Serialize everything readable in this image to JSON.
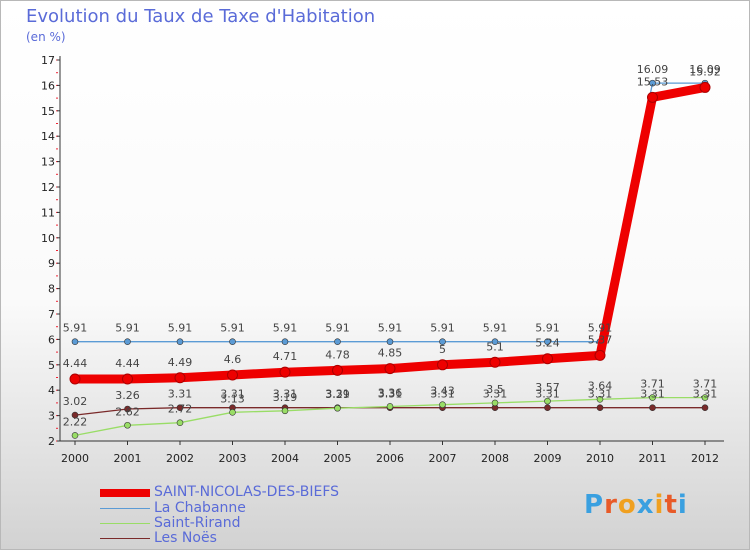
{
  "header": {
    "title": "Evolution du Taux de Taxe d'Habitation",
    "unit": "(en %)"
  },
  "logo": {
    "text": "Proxiti",
    "letter_colors": [
      "#3aa0e0",
      "#e85a28",
      "#f0a020",
      "#3aa0e0",
      "#f0a020",
      "#e85a28",
      "#3aa0e0"
    ]
  },
  "chart_data": {
    "type": "line",
    "title": "Evolution du Taux de Taxe d'Habitation",
    "ylabel": "(en %)",
    "xlabel": "",
    "x": [
      "2000",
      "2001",
      "2002",
      "2003",
      "2004",
      "2005",
      "2006",
      "2007",
      "2008",
      "2009",
      "2010",
      "2011",
      "2012"
    ],
    "ylim": [
      2,
      17
    ],
    "yticks": [
      "2",
      "3",
      "4",
      "5",
      "6",
      "7",
      "8",
      "9",
      "10",
      "11",
      "12",
      "13",
      "14",
      "15",
      "16",
      "17"
    ],
    "grid": false,
    "legend_position": "bottom-left",
    "series": [
      {
        "name": "SAINT-NICOLAS-DES-BIEFS",
        "color": "#ee0000",
        "values": [
          4.44,
          4.44,
          4.49,
          4.6,
          4.71,
          4.78,
          4.85,
          5,
          5.1,
          5.24,
          5.37,
          15.53,
          15.92
        ],
        "labels": [
          "4.44",
          "4.44",
          "4.49",
          "4.6",
          "4.71",
          "4.78",
          "4.85",
          "5",
          "5.1",
          "5.24",
          "5.37",
          "15.53",
          "15.92"
        ]
      },
      {
        "name": "La Chabanne",
        "color": "#5b9bd5",
        "values": [
          5.91,
          5.91,
          5.91,
          5.91,
          5.91,
          5.91,
          5.91,
          5.91,
          5.91,
          5.91,
          5.91,
          16.09,
          16.09
        ],
        "labels": [
          "5.91",
          "5.91",
          "5.91",
          "5.91",
          "5.91",
          "5.91",
          "5.91",
          "5.91",
          "5.91",
          "5.91",
          "5.91",
          "16.09",
          "16.09"
        ]
      },
      {
        "name": "Saint-Rirand",
        "color": "#99dd66",
        "values": [
          2.22,
          2.62,
          2.72,
          3.13,
          3.19,
          3.29,
          3.36,
          3.43,
          3.5,
          3.57,
          3.64,
          3.71,
          3.71
        ],
        "labels": [
          "2.22",
          "2.62",
          "2.72",
          "3.13",
          "3.19",
          "3.29",
          "3.36",
          "3.43",
          "3.5",
          "3.57",
          "3.64",
          "3.71",
          "3.71"
        ]
      },
      {
        "name": "Les Noës",
        "color": "#7a2a2a",
        "values": [
          3.02,
          3.26,
          3.31,
          3.31,
          3.31,
          3.31,
          3.31,
          3.31,
          3.31,
          3.31,
          3.31,
          3.31,
          3.31
        ],
        "labels": [
          "3.02",
          "3.26",
          "3.31",
          "3.31",
          "3.31",
          "3.31",
          "3.31",
          "3.31",
          "3.31",
          "3.31",
          "3.31",
          "3.31",
          "3.31"
        ]
      }
    ]
  }
}
